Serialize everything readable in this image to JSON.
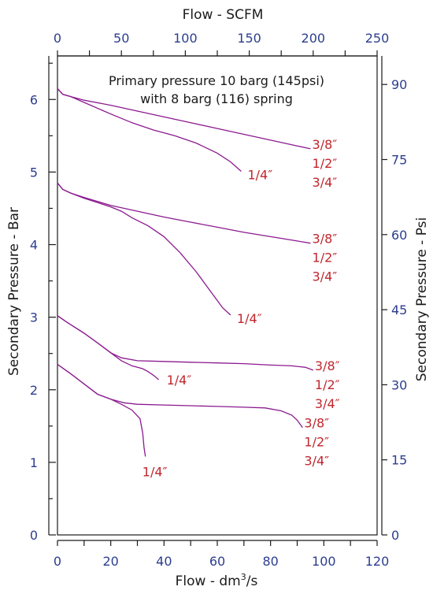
{
  "chart_data": {
    "type": "line",
    "annotation": [
      "Primary pressure 10 barg (145psi)",
      "with 8 barg (116) spring"
    ],
    "axes": {
      "x_bottom": {
        "label_main": "Flow - dm",
        "label_sup": "3",
        "label_tail": "/s",
        "range": [
          0,
          120
        ],
        "ticks": [
          0,
          20,
          40,
          60,
          80,
          100,
          120
        ],
        "minor_step": 10
      },
      "x_top": {
        "label": "Flow  - SCFM",
        "range": [
          0,
          250
        ],
        "ticks": [
          0,
          50,
          100,
          150,
          200,
          250
        ],
        "minor_step": 25
      },
      "y_left": {
        "label": "Secondary Pressure - Bar",
        "range": [
          0,
          6.6
        ],
        "ticks": [
          0,
          1,
          2,
          3,
          4,
          5,
          6
        ],
        "minor_step": 0.5
      },
      "y_right": {
        "label": "Secondary Pressure - Psi",
        "range": [
          0,
          95.7
        ],
        "ticks": [
          0,
          15,
          30,
          45,
          60,
          75,
          90
        ]
      }
    },
    "series": [
      {
        "x": [
          0,
          2,
          5,
          10,
          20,
          30,
          40,
          50,
          60,
          70,
          80,
          90,
          95
        ],
        "y": [
          6.15,
          6.07,
          6.04,
          5.99,
          5.92,
          5.84,
          5.76,
          5.68,
          5.6,
          5.52,
          5.44,
          5.36,
          5.32
        ],
        "labels": [
          "3/8″",
          "1/2″",
          "3/4″"
        ]
      },
      {
        "x": [
          0,
          2,
          5,
          10,
          20,
          28,
          36,
          44,
          52,
          60,
          65,
          69
        ],
        "y": [
          6.15,
          6.07,
          6.04,
          5.96,
          5.8,
          5.68,
          5.58,
          5.5,
          5.4,
          5.26,
          5.14,
          5.01
        ],
        "labels": [
          "1/4″"
        ]
      },
      {
        "x": [
          0,
          2,
          5,
          10,
          20,
          30,
          40,
          50,
          60,
          70,
          80,
          90,
          95
        ],
        "y": [
          4.85,
          4.76,
          4.71,
          4.65,
          4.54,
          4.46,
          4.38,
          4.31,
          4.24,
          4.17,
          4.11,
          4.05,
          4.02
        ],
        "labels": [
          "3/8″",
          "1/2″",
          "3/4″"
        ]
      },
      {
        "x": [
          0,
          2,
          5,
          10,
          20,
          24,
          28,
          34,
          40,
          46,
          52,
          58,
          62,
          65
        ],
        "y": [
          4.85,
          4.76,
          4.71,
          4.64,
          4.52,
          4.46,
          4.37,
          4.26,
          4.11,
          3.89,
          3.63,
          3.33,
          3.13,
          3.03
        ],
        "labels": [
          "1/4″"
        ]
      },
      {
        "x": [
          0,
          4,
          10,
          16,
          20,
          24,
          30,
          40,
          50,
          60,
          70,
          80,
          88,
          93,
          96
        ],
        "y": [
          3.02,
          2.92,
          2.78,
          2.62,
          2.51,
          2.44,
          2.4,
          2.39,
          2.38,
          2.37,
          2.36,
          2.34,
          2.33,
          2.31,
          2.27
        ],
        "labels": [
          "3/8″",
          "1/2″",
          "3/4″"
        ]
      },
      {
        "x": [
          0,
          4,
          10,
          16,
          20,
          24,
          28,
          32,
          34,
          36,
          38
        ],
        "y": [
          3.02,
          2.92,
          2.78,
          2.62,
          2.51,
          2.4,
          2.33,
          2.29,
          2.25,
          2.2,
          2.14
        ],
        "labels": [
          "1/4″"
        ]
      },
      {
        "x": [
          0,
          5,
          10,
          15,
          20,
          25,
          30,
          40,
          50,
          60,
          70,
          78,
          84,
          88,
          90,
          92
        ],
        "y": [
          2.35,
          2.22,
          2.08,
          1.94,
          1.87,
          1.82,
          1.8,
          1.79,
          1.78,
          1.77,
          1.76,
          1.75,
          1.71,
          1.65,
          1.58,
          1.48
        ],
        "labels": [
          "3/8″",
          "1/2″",
          "3/4″"
        ]
      },
      {
        "x": [
          0,
          5,
          10,
          15,
          20,
          24,
          28,
          31,
          32,
          32.5,
          33
        ],
        "y": [
          2.35,
          2.22,
          2.08,
          1.94,
          1.87,
          1.8,
          1.72,
          1.6,
          1.4,
          1.2,
          1.08
        ],
        "labels": [
          "1/4″"
        ]
      }
    ],
    "colors": {
      "curve": "#8b1a8f",
      "curve_label": "#c0262d",
      "tick_label": "#2c3d8f",
      "axis": "#1a1a1a"
    }
  }
}
